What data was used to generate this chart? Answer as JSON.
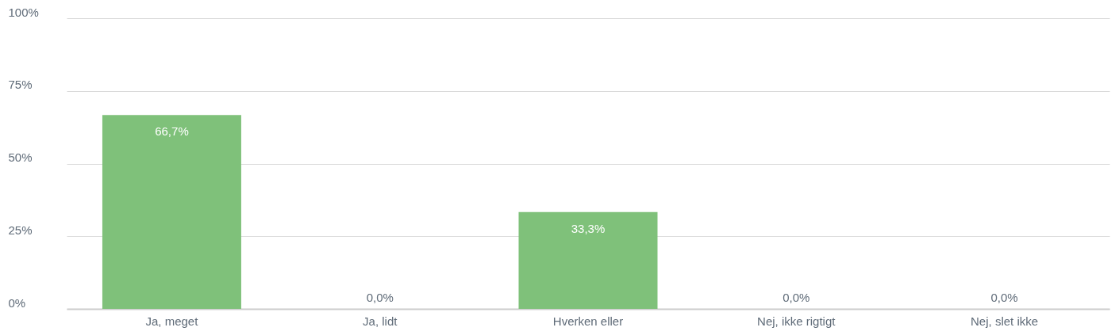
{
  "chart_data": {
    "type": "bar",
    "categories": [
      "Ja, meget",
      "Ja, lidt",
      "Hverken eller",
      "Nej, ikke rigtigt",
      "Nej, slet ikke"
    ],
    "values": [
      66.7,
      0,
      33.3,
      0,
      0
    ],
    "value_labels": [
      "66,7%",
      "0,0%",
      "33,3%",
      "0,0%",
      "0,0%"
    ],
    "color": "#7fc17a",
    "ylim": [
      0,
      100
    ],
    "yticks": [
      {
        "value": 0,
        "label": "0%"
      },
      {
        "value": 25,
        "label": "25%"
      },
      {
        "value": 50,
        "label": "50%"
      },
      {
        "value": 75,
        "label": "75%"
      },
      {
        "value": 100,
        "label": "100%"
      }
    ],
    "grid": "y"
  }
}
